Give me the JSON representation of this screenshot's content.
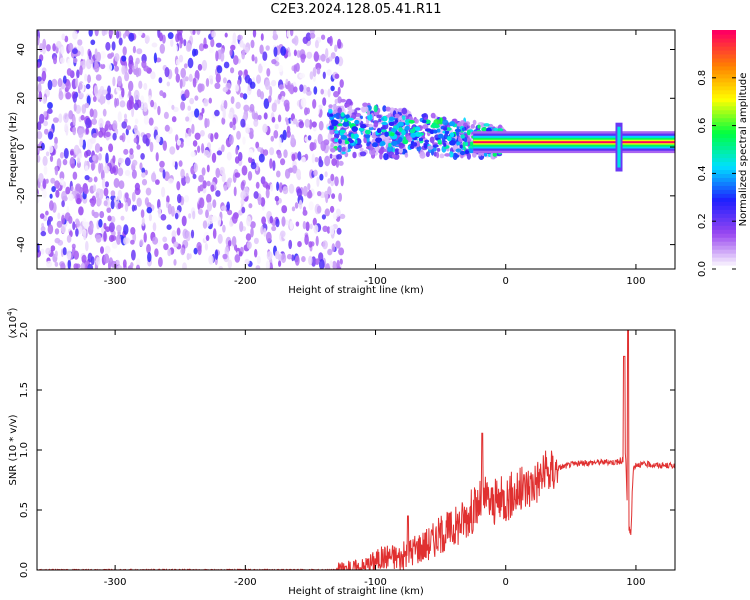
{
  "title": "C2E3.2024.128.05.41.R11",
  "chart_data": [
    {
      "type": "heatmap",
      "xlabel": "Height of straight line (km)",
      "ylabel": "Frequency (Hz)",
      "xlim": [
        -360,
        130
      ],
      "ylim": [
        -50,
        48
      ],
      "x_ticks": [
        -300,
        -200,
        -100,
        0,
        100
      ],
      "y_ticks": [
        -40,
        -20,
        0,
        20,
        40
      ],
      "colorbar": {
        "label": "Normalized spectral amplitude",
        "range": [
          0.0,
          1.0
        ],
        "ticks": [
          "0.0",
          "0.2",
          "0.4",
          "0.6",
          "0.8"
        ],
        "colormap": [
          "#ffffff",
          "#9a48f0",
          "#1f1fff",
          "#00e0ff",
          "#00ff40",
          "#ffff00",
          "#ff8000",
          "#ff0060"
        ]
      },
      "features": [
        {
          "name": "noise",
          "x_range": [
            -360,
            -125
          ],
          "freq_range": [
            -50,
            48
          ],
          "amplitude": 0.15
        },
        {
          "name": "signal",
          "x_range": [
            -135,
            0
          ],
          "freq_center_start": 8,
          "freq_center_end": 2,
          "amplitude": 0.45
        },
        {
          "name": "carrier",
          "x_range": [
            0,
            130
          ],
          "freq": 2,
          "amplitude": 1.0
        },
        {
          "name": "spike",
          "x": 87,
          "freq_range": [
            -10,
            10
          ],
          "amplitude": 0.7
        }
      ]
    },
    {
      "type": "line",
      "xlabel": "Height of straight line (km)",
      "ylabel": "SNR (10 * v/v)",
      "ylabel_multiplier": "(x10",
      "ylabel_multiplier_exp": "4",
      "ylabel_multiplier_close": ")",
      "xlim": [
        -360,
        130
      ],
      "ylim": [
        0.0,
        2.0
      ],
      "x_ticks": [
        -300,
        -200,
        -100,
        0,
        100
      ],
      "y_ticks": [
        "0.0",
        "0.5",
        "1.0",
        "1.5",
        "2.0"
      ],
      "line_color": "#e03030",
      "series": [
        {
          "x": [
            -360,
            -130,
            -110,
            -100,
            -90,
            -80,
            -70,
            -60,
            -50,
            -40,
            -30,
            -20,
            -15,
            -10,
            0,
            10,
            20,
            30,
            40,
            50,
            60,
            70,
            80,
            88,
            90,
            92,
            94,
            96,
            98,
            100,
            110,
            120,
            130
          ],
          "values": [
            0.0,
            0.0,
            0.02,
            0.08,
            0.12,
            0.1,
            0.18,
            0.22,
            0.3,
            0.35,
            0.45,
            0.55,
            0.6,
            0.55,
            0.6,
            0.65,
            0.72,
            0.8,
            0.85,
            0.88,
            0.89,
            0.9,
            0.9,
            0.9,
            0.92,
            1.0,
            0.35,
            0.3,
            0.85,
            0.88,
            0.88,
            0.87,
            0.87
          ]
        }
      ],
      "spikes": [
        {
          "x": -75,
          "value": 0.45
        },
        {
          "x": -18,
          "value": 1.14
        },
        {
          "x": 91,
          "value": 1.78
        },
        {
          "x": 94,
          "value": 2.0
        }
      ]
    }
  ]
}
